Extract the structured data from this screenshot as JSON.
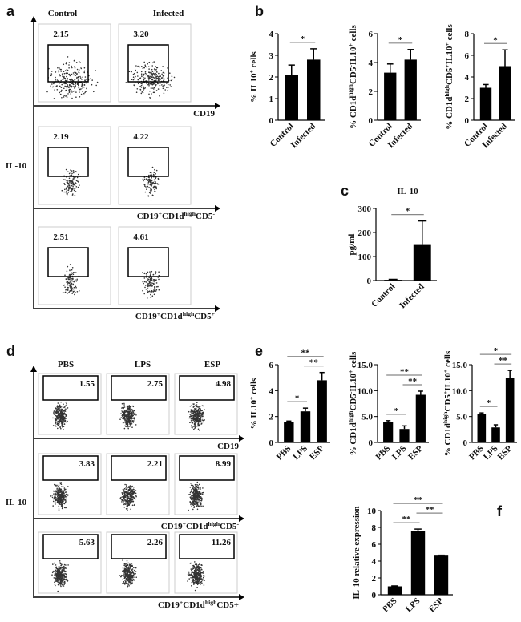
{
  "figure": {
    "panel_labels": [
      "a",
      "b",
      "c",
      "d",
      "e",
      "f"
    ],
    "flow": [
      {
        "columns": [
          "Control",
          "Infected"
        ],
        "y_label": "IL-10",
        "rows": [
          {
            "x_label": [
              "CD19"
            ],
            "gates": [
              "2.15",
              "3.20"
            ]
          },
          {
            "x_label": [
              "CD19",
              "+",
              "CD1d",
              "high",
              "CD5",
              "-"
            ],
            "gates": [
              "2.19",
              "4.22"
            ]
          },
          {
            "x_label": [
              "CD19",
              "+",
              "CD1d",
              "high",
              "CD5",
              "+"
            ],
            "gates": [
              "2.51",
              "4.61"
            ]
          }
        ]
      },
      {
        "columns": [
          "PBS",
          "LPS",
          "ESP"
        ],
        "y_label": "IL-10",
        "rows": [
          {
            "x_label": [
              "CD19"
            ],
            "gates": [
              "1.55",
              "2.75",
              "4.98"
            ]
          },
          {
            "x_label": [
              "CD19",
              "+",
              "CD1d",
              "high",
              "CD5",
              "-"
            ],
            "gates": [
              "3.83",
              "2.21",
              "8.99"
            ]
          },
          {
            "x_label": [
              "CD19",
              "+",
              "CD1d",
              "high",
              "CD5+"
            ],
            "gates": [
              "5.63",
              "2.26",
              "11.26"
            ]
          }
        ]
      }
    ]
  },
  "chart_data": [
    {
      "type": "bar",
      "y_label": [
        "% IL10",
        "+",
        " cells"
      ],
      "categories": [
        "Control",
        "Infected"
      ],
      "values": [
        2.1,
        2.8
      ],
      "errors": [
        0.45,
        0.5
      ],
      "color": "#000000",
      "ylim": [
        0,
        4
      ],
      "yticks": [
        0,
        1,
        2,
        3,
        4
      ],
      "significance": [
        {
          "pair": [
            0,
            1
          ],
          "label": "*"
        }
      ]
    },
    {
      "type": "bar",
      "y_label": [
        "% CD1d",
        "high",
        "CD5",
        "-",
        "IL10",
        "+",
        " cells"
      ],
      "categories": [
        "Control",
        "Infected"
      ],
      "values": [
        3.3,
        4.2
      ],
      "errors": [
        0.6,
        0.7
      ],
      "color": "#000000",
      "ylim": [
        0,
        6
      ],
      "yticks": [
        0,
        2,
        4,
        6
      ],
      "significance": [
        {
          "pair": [
            0,
            1
          ],
          "label": "*"
        }
      ]
    },
    {
      "type": "bar",
      "y_label": [
        "% CD1d",
        "high",
        "CD5",
        "+",
        "IL10",
        "+",
        " cells"
      ],
      "categories": [
        "Control",
        "Infected"
      ],
      "values": [
        3.0,
        5.0
      ],
      "errors": [
        0.3,
        1.5
      ],
      "color": "#000000",
      "ylim": [
        0,
        8
      ],
      "yticks": [
        0,
        2,
        4,
        6,
        8
      ],
      "significance": [
        {
          "pair": [
            0,
            1
          ],
          "label": "*"
        }
      ]
    },
    {
      "type": "bar",
      "title": "IL-10",
      "y_label": [
        "pg/ml"
      ],
      "categories": [
        "Control",
        "Infected"
      ],
      "values": [
        3,
        148
      ],
      "errors": [
        2,
        100
      ],
      "color": "#000000",
      "ylim": [
        0,
        300
      ],
      "yticks": [
        0,
        100,
        200,
        300
      ],
      "significance": [
        {
          "pair": [
            0,
            1
          ],
          "label": "*"
        }
      ]
    },
    {
      "type": "bar",
      "y_label": [
        "% IL10",
        "+",
        " cells"
      ],
      "categories": [
        "PBS",
        "LPS",
        "ESP"
      ],
      "values": [
        1.6,
        2.4,
        4.8
      ],
      "errors": [
        0.05,
        0.25,
        0.6
      ],
      "color": "#000000",
      "ylim": [
        0,
        6
      ],
      "yticks": [
        0,
        2,
        4,
        6
      ],
      "significance": [
        {
          "pair": [
            0,
            1
          ],
          "label": "*"
        },
        {
          "pair": [
            1,
            2
          ],
          "label": "**"
        },
        {
          "pair": [
            0,
            2
          ],
          "label": "**"
        }
      ]
    },
    {
      "type": "bar",
      "y_label": [
        "% CD1d",
        "high",
        "CD5",
        "-",
        "IL10",
        "+",
        " cells"
      ],
      "categories": [
        "PBS",
        "LPS",
        "ESP"
      ],
      "values": [
        4.0,
        2.6,
        9.2
      ],
      "errors": [
        0.2,
        0.6,
        0.7
      ],
      "color": "#000000",
      "ylim": [
        0,
        15
      ],
      "yticks": [
        0,
        {
          "value": 5,
          "label": "5.0"
        },
        {
          "value": 10,
          "label": "10.0"
        },
        {
          "value": 15,
          "label": "15.0"
        }
      ],
      "significance": [
        {
          "pair": [
            0,
            1
          ],
          "label": "*"
        },
        {
          "pair": [
            1,
            2
          ],
          "label": "**"
        },
        {
          "pair": [
            0,
            2
          ],
          "label": "**"
        }
      ]
    },
    {
      "type": "bar",
      "y_label": [
        "% CD1d",
        "high",
        "CD5",
        "+",
        "IL10",
        "+",
        " cells"
      ],
      "categories": [
        "PBS",
        "LPS",
        "ESP"
      ],
      "values": [
        5.5,
        2.9,
        12.4
      ],
      "errors": [
        0.2,
        0.5,
        1.5
      ],
      "color": "#000000",
      "ylim": [
        0,
        15
      ],
      "yticks": [
        0,
        {
          "value": 5,
          "label": "5.0"
        },
        {
          "value": 10,
          "label": "10.0"
        },
        {
          "value": 15,
          "label": "15.0"
        }
      ],
      "significance": [
        {
          "pair": [
            0,
            1
          ],
          "label": "*"
        },
        {
          "pair": [
            1,
            2
          ],
          "label": "**"
        },
        {
          "pair": [
            0,
            2
          ],
          "label": "*"
        }
      ]
    },
    {
      "type": "bar",
      "y_label": [
        "IL-10 relative expression"
      ],
      "categories": [
        "PBS",
        "LPS",
        "ESP"
      ],
      "values": [
        1.0,
        7.6,
        4.65
      ],
      "errors": [
        0.05,
        0.2,
        0.05
      ],
      "color": "#000000",
      "ylim": [
        0,
        10
      ],
      "yticks": [
        0,
        2,
        4,
        6,
        8,
        10
      ],
      "significance": [
        {
          "pair": [
            0,
            1
          ],
          "label": "**"
        },
        {
          "pair": [
            1,
            2
          ],
          "label": "**"
        },
        {
          "pair": [
            0,
            2
          ],
          "label": "**"
        }
      ]
    }
  ]
}
